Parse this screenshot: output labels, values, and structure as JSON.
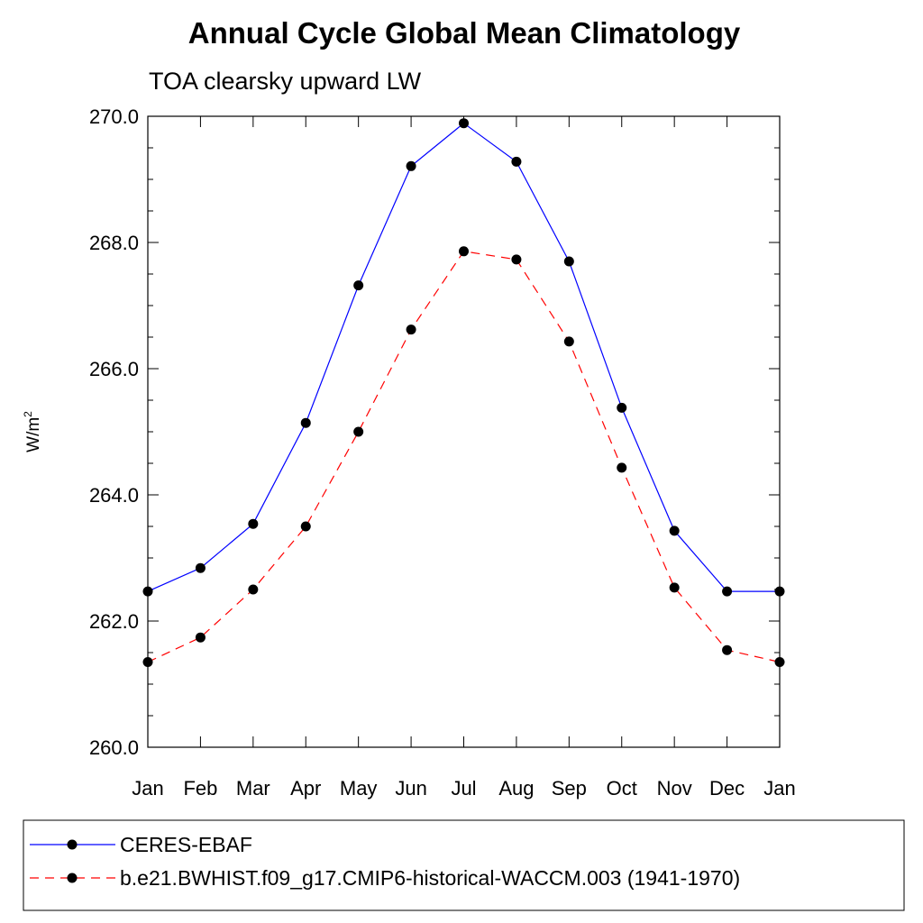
{
  "chart_data": {
    "type": "line",
    "title": "Annual Cycle Global Mean Climatology",
    "subtitle": "TOA clearsky upward LW",
    "ylabel_base": "W/m",
    "ylabel_sup": "2",
    "xlabel": "",
    "categories": [
      "Jan",
      "Feb",
      "Mar",
      "Apr",
      "May",
      "Jun",
      "Jul",
      "Aug",
      "Sep",
      "Oct",
      "Nov",
      "Dec",
      "Jan"
    ],
    "ylim": [
      260.0,
      270.0
    ],
    "yticks": [
      "260.0",
      "262.0",
      "264.0",
      "266.0",
      "268.0",
      "270.0"
    ],
    "ytick_values": [
      260,
      262,
      264,
      266,
      268,
      270
    ],
    "series": [
      {
        "name": "CERES-EBAF",
        "color": "#0000ff",
        "dash": "solid",
        "values": [
          262.47,
          262.84,
          263.54,
          265.14,
          267.32,
          269.21,
          269.89,
          269.28,
          267.7,
          265.38,
          263.43,
          262.47,
          262.47
        ]
      },
      {
        "name": "b.e21.BWHIST.f09_g17.CMIP6-historical-WACCM.003 (1941-1970)",
        "color": "#ff0000",
        "dash": "dashed",
        "values": [
          261.35,
          261.74,
          262.5,
          263.5,
          265.0,
          266.62,
          267.86,
          267.73,
          266.43,
          264.43,
          262.53,
          261.54,
          261.35
        ]
      }
    ],
    "marker": "filled-circle",
    "legend_position": "bottom"
  }
}
